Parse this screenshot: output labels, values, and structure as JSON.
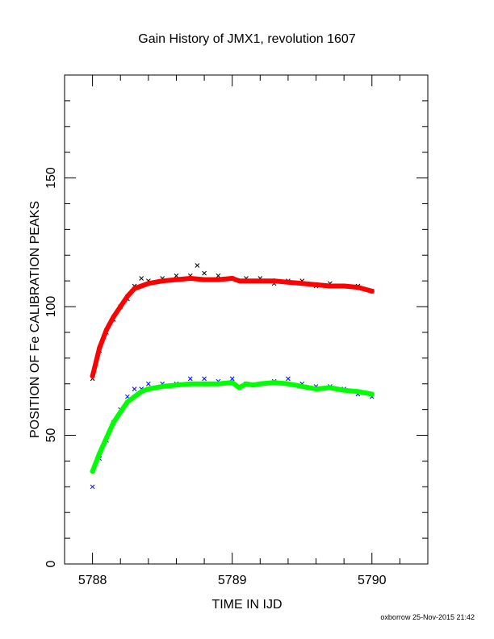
{
  "chart_data": {
    "type": "scatter",
    "title": "Gain History of JMX1, revolution 1607",
    "xlabel": "TIME IN IJD",
    "ylabel": "POSITION OF Fe CALIBRATION PEAKS",
    "footer": "oxborrow 25-Nov-2015 21:42",
    "xlim": [
      5787.8,
      5790.4
    ],
    "ylim": [
      0,
      190
    ],
    "x_ticks": [
      5788,
      5789,
      5790
    ],
    "y_ticks": [
      0,
      50,
      100,
      150
    ],
    "grid": false,
    "series": [
      {
        "role": "upper peak measurements",
        "marker": "x",
        "color": "#000000",
        "x": [
          5788.0,
          5788.05,
          5788.1,
          5788.15,
          5788.2,
          5788.25,
          5788.3,
          5788.35,
          5788.4,
          5788.5,
          5788.6,
          5788.7,
          5788.75,
          5788.8,
          5788.9,
          5789.0,
          5789.1,
          5789.2,
          5789.3,
          5789.4,
          5789.5,
          5789.6,
          5789.7,
          5789.8,
          5789.9,
          5790.0
        ],
        "y": [
          72,
          83,
          90,
          95,
          100,
          103,
          108,
          111,
          110,
          111,
          112,
          112,
          116,
          113,
          112,
          111,
          111,
          111,
          109,
          110,
          110,
          108,
          109,
          108,
          108,
          106
        ]
      },
      {
        "role": "upper peak gain fit",
        "marker": "line",
        "color": "#ff0000",
        "x": [
          5788.0,
          5788.05,
          5788.1,
          5788.15,
          5788.2,
          5788.25,
          5788.3,
          5788.35,
          5788.4,
          5788.5,
          5788.6,
          5788.7,
          5788.8,
          5788.9,
          5789.0,
          5789.05,
          5789.1,
          5789.2,
          5789.3,
          5789.4,
          5789.5,
          5789.6,
          5789.7,
          5789.8,
          5789.9,
          5790.0
        ],
        "y": [
          73,
          84,
          91,
          96,
          100,
          104,
          107,
          108,
          109,
          110,
          110.5,
          111,
          110.5,
          110.5,
          111,
          110,
          110,
          110,
          110,
          109.5,
          109,
          108.5,
          108,
          108,
          107.5,
          106
        ]
      },
      {
        "role": "lower peak measurements",
        "marker": "x",
        "color": "#0000ff",
        "x": [
          5788.0,
          5788.05,
          5788.1,
          5788.15,
          5788.2,
          5788.25,
          5788.3,
          5788.35,
          5788.4,
          5788.5,
          5788.6,
          5788.7,
          5788.8,
          5788.9,
          5789.0,
          5789.1,
          5789.2,
          5789.3,
          5789.4,
          5789.5,
          5789.6,
          5789.7,
          5789.8,
          5789.9,
          5790.0
        ],
        "y": [
          30,
          41,
          48,
          55,
          60,
          65,
          68,
          68,
          70,
          70,
          70,
          72,
          72,
          71,
          72,
          70,
          70,
          71,
          72,
          70,
          69,
          69,
          68,
          66,
          65
        ]
      },
      {
        "role": "lower peak gain fit",
        "marker": "line",
        "color": "#00ff00",
        "x": [
          5788.0,
          5788.05,
          5788.1,
          5788.15,
          5788.2,
          5788.25,
          5788.3,
          5788.35,
          5788.4,
          5788.5,
          5788.6,
          5788.7,
          5788.8,
          5788.9,
          5789.0,
          5789.05,
          5789.1,
          5789.15,
          5789.2,
          5789.3,
          5789.4,
          5789.5,
          5789.6,
          5789.7,
          5789.8,
          5789.9,
          5790.0
        ],
        "y": [
          36,
          43,
          49,
          55,
          59,
          63,
          65,
          67,
          68,
          69,
          69.5,
          70,
          70,
          70,
          70.5,
          68.5,
          70,
          69.5,
          70,
          70.5,
          70,
          69,
          68,
          68.5,
          67.5,
          67,
          66
        ]
      }
    ]
  }
}
